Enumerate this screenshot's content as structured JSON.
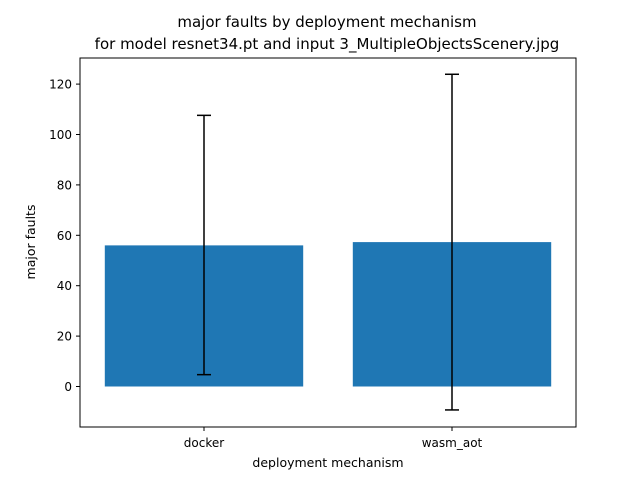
{
  "chart_data": {
    "type": "bar",
    "title": "major faults by deployment mechanism",
    "subtitle": "for model resnet34.pt and input 3_MultipleObjectsScenery.jpg",
    "xlabel": "deployment mechanism",
    "ylabel": "major faults",
    "categories": [
      "docker",
      "wasm_aot"
    ],
    "values": [
      56,
      57.3
    ],
    "error_low": [
      4.7,
      -9.3
    ],
    "error_high": [
      107.6,
      123.9
    ],
    "ylim": [
      -15.5,
      130
    ],
    "yticks": [
      0,
      20,
      40,
      60,
      80,
      100,
      120
    ],
    "ytick_labels": [
      "0",
      "20",
      "40",
      "60",
      "80",
      "100",
      "120"
    ],
    "grid": false,
    "bar_color": "#1f77b4",
    "error_color": "#000000"
  }
}
